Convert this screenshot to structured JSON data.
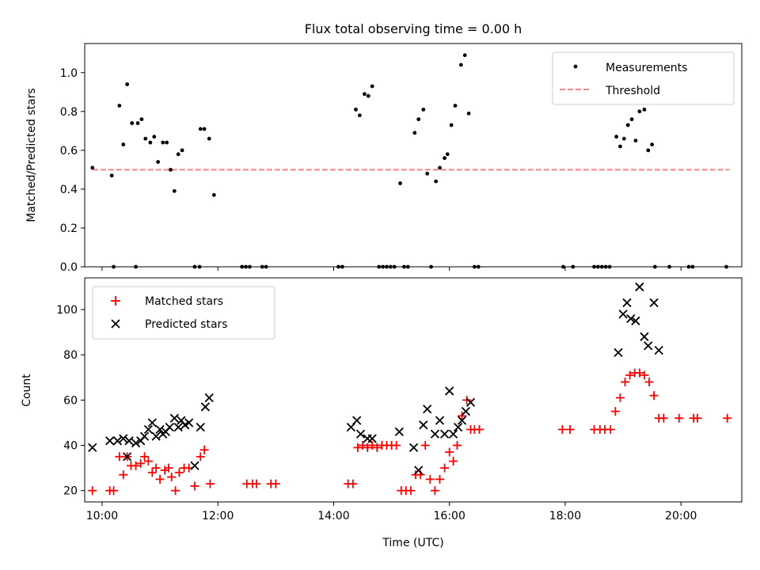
{
  "figure_title": "Flux total observing time = 0.00 h",
  "chart_data": [
    {
      "type": "scatter",
      "panel": "top",
      "ylabel": "Matched/Predicted stars",
      "ylim": [
        0,
        1.15
      ],
      "xlim": [
        "09:42",
        "21:03"
      ],
      "yticks": [
        "0.0",
        "0.2",
        "0.4",
        "0.6",
        "0.8",
        "1.0"
      ],
      "ytick_values": [
        0,
        0.2,
        0.4,
        0.6,
        0.8,
        1.0
      ],
      "legend": {
        "placement": "upper right",
        "entries": [
          "Measurements",
          "Threshold"
        ]
      },
      "threshold": {
        "name": "Threshold",
        "value": 0.5,
        "x_range": [
          "09:50",
          "20:50"
        ],
        "color": "#ff7f7f",
        "style": "dashed"
      },
      "series": [
        {
          "name": "Measurements",
          "color": "#000000",
          "marker": "dot",
          "points": [
            [
              "09:50",
              0.51
            ],
            [
              "10:10",
              0.47
            ],
            [
              "10:18",
              0.83
            ],
            [
              "10:22",
              0.63
            ],
            [
              "10:26",
              0.94
            ],
            [
              "10:31",
              0.74
            ],
            [
              "10:37",
              0.74
            ],
            [
              "10:41",
              0.76
            ],
            [
              "10:45",
              0.66
            ],
            [
              "10:50",
              0.64
            ],
            [
              "10:54",
              0.67
            ],
            [
              "10:58",
              0.54
            ],
            [
              "11:03",
              0.64
            ],
            [
              "11:07",
              0.64
            ],
            [
              "11:11",
              0.5
            ],
            [
              "11:15",
              0.39
            ],
            [
              "11:19",
              0.58
            ],
            [
              "11:23",
              0.6
            ],
            [
              "11:42",
              0.71
            ],
            [
              "11:46",
              0.71
            ],
            [
              "11:51",
              0.66
            ],
            [
              "11:56",
              0.37
            ],
            [
              "14:23",
              0.81
            ],
            [
              "14:27",
              0.78
            ],
            [
              "14:32",
              0.89
            ],
            [
              "14:36",
              0.88
            ],
            [
              "14:40",
              0.93
            ],
            [
              "15:09",
              0.43
            ],
            [
              "15:24",
              0.69
            ],
            [
              "15:28",
              0.76
            ],
            [
              "15:33",
              0.81
            ],
            [
              "15:37",
              0.48
            ],
            [
              "15:46",
              0.44
            ],
            [
              "15:50",
              0.51
            ],
            [
              "15:55",
              0.56
            ],
            [
              "15:58",
              0.58
            ],
            [
              "16:02",
              0.73
            ],
            [
              "16:06",
              0.83
            ],
            [
              "16:12",
              1.04
            ],
            [
              "16:16",
              1.09
            ],
            [
              "16:20",
              0.79
            ],
            [
              "18:53",
              0.67
            ],
            [
              "18:57",
              0.62
            ],
            [
              "19:01",
              0.66
            ],
            [
              "19:05",
              0.73
            ],
            [
              "19:09",
              0.76
            ],
            [
              "19:13",
              0.65
            ],
            [
              "19:17",
              0.8
            ],
            [
              "19:22",
              0.81
            ],
            [
              "19:26",
              0.6
            ],
            [
              "19:30",
              0.63
            ],
            [
              "10:12",
              0
            ],
            [
              "10:35",
              0
            ],
            [
              "11:36",
              0
            ],
            [
              "11:41",
              0
            ],
            [
              "12:25",
              0
            ],
            [
              "12:29",
              0
            ],
            [
              "12:33",
              0
            ],
            [
              "12:46",
              0
            ],
            [
              "12:50",
              0
            ],
            [
              "14:05",
              0
            ],
            [
              "14:09",
              0
            ],
            [
              "14:47",
              0
            ],
            [
              "14:51",
              0
            ],
            [
              "14:55",
              0
            ],
            [
              "14:59",
              0
            ],
            [
              "15:03",
              0
            ],
            [
              "15:13",
              0
            ],
            [
              "15:17",
              0
            ],
            [
              "15:41",
              0
            ],
            [
              "16:26",
              0
            ],
            [
              "16:30",
              0
            ],
            [
              "17:58",
              0
            ],
            [
              "18:08",
              0
            ],
            [
              "18:30",
              0
            ],
            [
              "18:34",
              0
            ],
            [
              "18:38",
              0
            ],
            [
              "18:42",
              0
            ],
            [
              "18:46",
              0
            ],
            [
              "19:33",
              0
            ],
            [
              "19:48",
              0
            ],
            [
              "20:08",
              0
            ],
            [
              "20:12",
              0
            ],
            [
              "20:47",
              0
            ]
          ]
        }
      ]
    },
    {
      "type": "scatter",
      "panel": "bottom",
      "xlabel": "Time (UTC)",
      "ylabel": "Count",
      "ylim": [
        15,
        114
      ],
      "xlim": [
        "09:42",
        "21:03"
      ],
      "xticks": [
        "10:00",
        "12:00",
        "14:00",
        "16:00",
        "18:00",
        "20:00"
      ],
      "yticks": [
        "20",
        "40",
        "60",
        "80",
        "100"
      ],
      "ytick_values": [
        20,
        40,
        60,
        80,
        100
      ],
      "legend": {
        "placement": "upper left",
        "entries": [
          "Matched stars",
          "Predicted stars"
        ]
      },
      "series": [
        {
          "name": "Matched stars",
          "color": "#ff0000",
          "marker": "plus",
          "points": [
            [
              "09:50",
              20
            ],
            [
              "10:08",
              20
            ],
            [
              "10:12",
              20
            ],
            [
              "10:18",
              35
            ],
            [
              "10:22",
              27
            ],
            [
              "10:26",
              35
            ],
            [
              "10:30",
              31
            ],
            [
              "10:35",
              31
            ],
            [
              "10:40",
              32
            ],
            [
              "10:44",
              35
            ],
            [
              "10:48",
              33
            ],
            [
              "10:52",
              28
            ],
            [
              "10:56",
              30
            ],
            [
              "11:00",
              25
            ],
            [
              "11:05",
              29
            ],
            [
              "11:09",
              30
            ],
            [
              "11:12",
              26
            ],
            [
              "11:16",
              20
            ],
            [
              "11:20",
              28
            ],
            [
              "11:25",
              30
            ],
            [
              "11:30",
              30
            ],
            [
              "11:36",
              22
            ],
            [
              "11:42",
              35
            ],
            [
              "11:46",
              38
            ],
            [
              "11:52",
              23
            ],
            [
              "12:30",
              23
            ],
            [
              "12:36",
              23
            ],
            [
              "12:40",
              23
            ],
            [
              "12:55",
              23
            ],
            [
              "13:00",
              23
            ],
            [
              "14:15",
              23
            ],
            [
              "14:20",
              23
            ],
            [
              "14:25",
              39
            ],
            [
              "14:30",
              40
            ],
            [
              "14:35",
              39
            ],
            [
              "14:40",
              40
            ],
            [
              "14:45",
              39
            ],
            [
              "14:50",
              40
            ],
            [
              "14:55",
              40
            ],
            [
              "15:00",
              40
            ],
            [
              "15:05",
              40
            ],
            [
              "15:10",
              20
            ],
            [
              "15:15",
              20
            ],
            [
              "15:20",
              20
            ],
            [
              "15:25",
              27
            ],
            [
              "15:30",
              27
            ],
            [
              "15:35",
              40
            ],
            [
              "15:40",
              25
            ],
            [
              "15:45",
              20
            ],
            [
              "15:50",
              25
            ],
            [
              "15:55",
              30
            ],
            [
              "16:00",
              37
            ],
            [
              "16:04",
              33
            ],
            [
              "16:08",
              40
            ],
            [
              "16:13",
              53
            ],
            [
              "16:18",
              60
            ],
            [
              "16:22",
              47
            ],
            [
              "16:26",
              47
            ],
            [
              "16:31",
              47
            ],
            [
              "17:57",
              47
            ],
            [
              "18:05",
              47
            ],
            [
              "18:30",
              47
            ],
            [
              "18:36",
              47
            ],
            [
              "18:41",
              47
            ],
            [
              "18:47",
              47
            ],
            [
              "18:52",
              55
            ],
            [
              "18:57",
              61
            ],
            [
              "19:02",
              68
            ],
            [
              "19:07",
              71
            ],
            [
              "19:12",
              72
            ],
            [
              "19:17",
              72
            ],
            [
              "19:22",
              71
            ],
            [
              "19:27",
              68
            ],
            [
              "19:32",
              62
            ],
            [
              "19:37",
              52
            ],
            [
              "19:42",
              52
            ],
            [
              "19:58",
              52
            ],
            [
              "20:13",
              52
            ],
            [
              "20:17",
              52
            ],
            [
              "20:48",
              52
            ]
          ]
        },
        {
          "name": "Predicted stars",
          "color": "#000000",
          "marker": "x",
          "points": [
            [
              "09:50",
              39
            ],
            [
              "10:08",
              42
            ],
            [
              "10:16",
              42
            ],
            [
              "10:22",
              43
            ],
            [
              "10:26",
              35
            ],
            [
              "10:28",
              42
            ],
            [
              "10:35",
              41
            ],
            [
              "10:40",
              42
            ],
            [
              "10:44",
              44
            ],
            [
              "10:48",
              47
            ],
            [
              "10:52",
              50
            ],
            [
              "10:56",
              44
            ],
            [
              "11:00",
              47
            ],
            [
              "11:03",
              45
            ],
            [
              "11:06",
              46
            ],
            [
              "11:10",
              48
            ],
            [
              "11:15",
              52
            ],
            [
              "11:19",
              48
            ],
            [
              "11:22",
              51
            ],
            [
              "11:26",
              49
            ],
            [
              "11:30",
              50
            ],
            [
              "11:36",
              31
            ],
            [
              "11:42",
              48
            ],
            [
              "11:47",
              57
            ],
            [
              "11:51",
              61
            ],
            [
              "14:18",
              48
            ],
            [
              "14:24",
              51
            ],
            [
              "14:28",
              45
            ],
            [
              "14:35",
              43
            ],
            [
              "14:40",
              43
            ],
            [
              "15:08",
              46
            ],
            [
              "15:23",
              39
            ],
            [
              "15:28",
              29
            ],
            [
              "15:33",
              49
            ],
            [
              "15:37",
              56
            ],
            [
              "15:45",
              45
            ],
            [
              "15:50",
              51
            ],
            [
              "15:55",
              45
            ],
            [
              "16:00",
              64
            ],
            [
              "16:04",
              45
            ],
            [
              "16:09",
              48
            ],
            [
              "16:13",
              51
            ],
            [
              "16:17",
              55
            ],
            [
              "16:22",
              59
            ],
            [
              "18:55",
              81
            ],
            [
              "19:00",
              98
            ],
            [
              "19:04",
              103
            ],
            [
              "19:08",
              96
            ],
            [
              "19:13",
              95
            ],
            [
              "19:17",
              110
            ],
            [
              "19:22",
              88
            ],
            [
              "19:26",
              84
            ],
            [
              "19:32",
              103
            ],
            [
              "19:37",
              82
            ]
          ]
        }
      ]
    }
  ]
}
